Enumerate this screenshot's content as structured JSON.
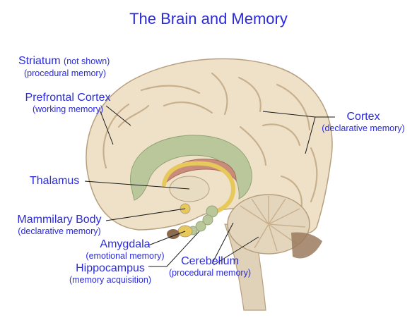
{
  "title": "The Brain and Memory",
  "labels": {
    "striatum": {
      "name": "Striatum",
      "note": "(not shown)",
      "role": "(procedural memory)"
    },
    "prefrontal_cortex": {
      "name": "Prefrontal Cortex",
      "role": "(working memory)"
    },
    "cortex": {
      "name": "Cortex",
      "role": "(declarative memory)"
    },
    "thalamus": {
      "name": "Thalamus"
    },
    "mammilary_body": {
      "name": "Mammilary Body",
      "role": "(declarative memory)"
    },
    "amygdala": {
      "name": "Amygdala",
      "role": "(emotional memory)"
    },
    "hippocampus": {
      "name": "Hippocampus",
      "role": "(memory acquisition)"
    },
    "cerebellum": {
      "name": "Cerebellum",
      "role": "(procedural memory)"
    }
  },
  "colors": {
    "label_text": "#2b2bd9",
    "brain_tissue": "#efe1c8",
    "brain_outline": "#b79f7d",
    "limbic_green": "#b9c79a",
    "fornix_yellow": "#e6c95a",
    "corpus_callosum": "#c98b7a",
    "brainstem": "#dfd2b8",
    "cerebellum": "#e4d6bd",
    "pituitary": "#8a6b4e"
  }
}
